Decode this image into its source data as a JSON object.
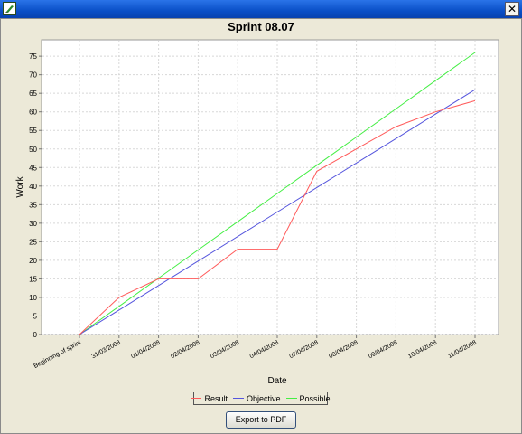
{
  "window": {
    "close_glyph": "✕",
    "app_icon": "pencil-icon"
  },
  "chart_data": {
    "type": "line",
    "title": "Sprint 08.07",
    "xlabel": "Date",
    "ylabel": "Work",
    "categories": [
      "Beginning of sprint",
      "31/03/2008",
      "01/04/2008",
      "02/04/2008",
      "03/04/2008",
      "04/04/2008",
      "07/04/2008",
      "08/04/2008",
      "09/04/2008",
      "10/04/2008",
      "11/04/2008"
    ],
    "ylim": [
      0,
      80
    ],
    "yticks": [
      0,
      5,
      10,
      15,
      20,
      25,
      30,
      35,
      40,
      45,
      50,
      55,
      60,
      65,
      70,
      75
    ],
    "grid": true,
    "legend": "bottom",
    "series": [
      {
        "name": "Result",
        "color": "#ff5a5a",
        "values": [
          0,
          10,
          15,
          15,
          23,
          23,
          44,
          50,
          56,
          60,
          63
        ]
      },
      {
        "name": "Objective",
        "color": "#5555dd",
        "values": [
          0,
          6.6,
          13.2,
          19.8,
          26.4,
          33,
          39.6,
          46.2,
          52.8,
          59.4,
          66
        ]
      },
      {
        "name": "Possible",
        "color": "#44ee44",
        "values": [
          0,
          7.6,
          15.2,
          22.8,
          30.4,
          38,
          45.6,
          53.2,
          60.8,
          68.4,
          76
        ]
      }
    ]
  },
  "export_button": {
    "label": "Export to PDF"
  }
}
